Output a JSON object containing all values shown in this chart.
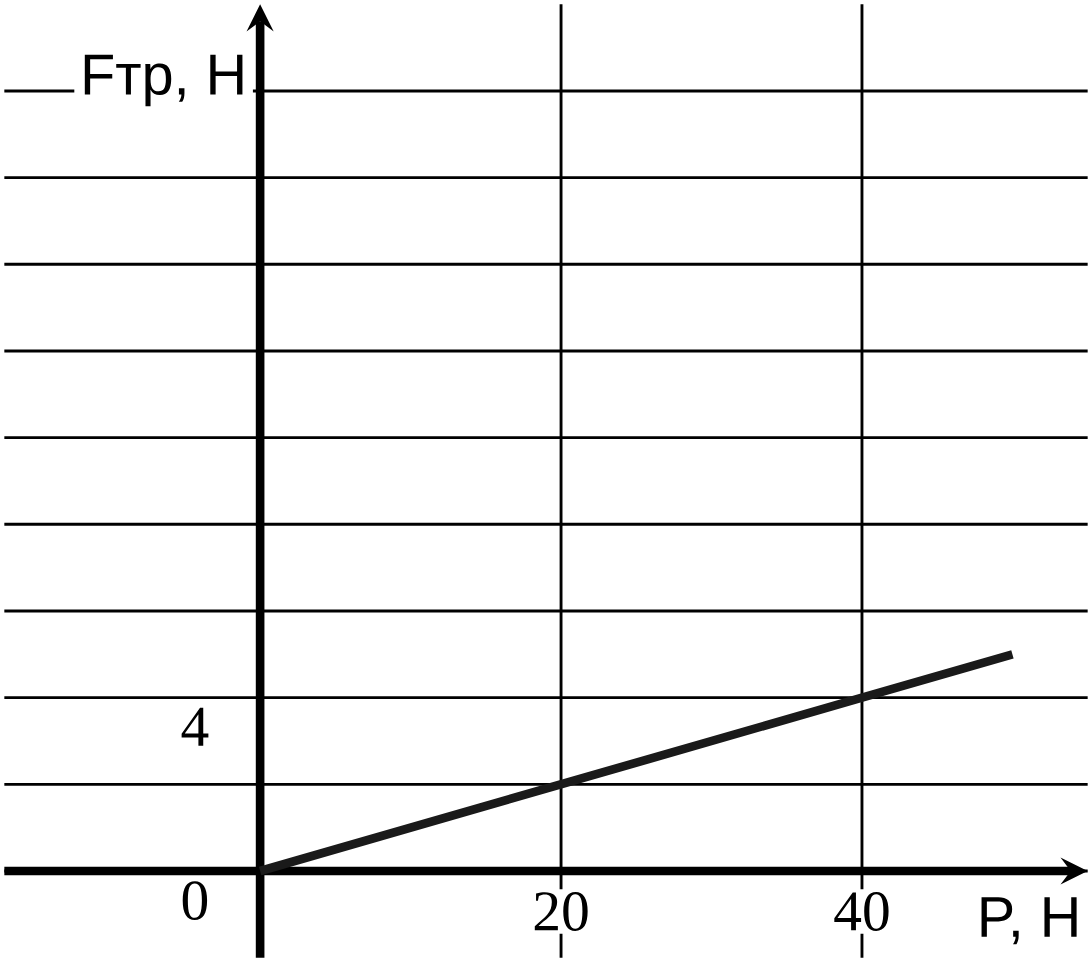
{
  "chart_data": {
    "type": "line",
    "xlabel": "P, Н",
    "ylabel": "Fтр, Н",
    "x": [
      0,
      40,
      50
    ],
    "series": [
      {
        "color": "#1a1a1a",
        "values": [
          0,
          4,
          5
        ]
      }
    ],
    "xlim": [
      -17,
      55
    ],
    "ylim": [
      -2,
      20
    ],
    "xticks": [
      20,
      40
    ],
    "yticks": [
      0,
      {
        "value": 2,
        "label": null
      },
      4,
      {
        "value": 6,
        "label": null
      },
      {
        "value": 8,
        "label": null
      },
      {
        "value": 10,
        "label": null
      },
      {
        "value": 12,
        "label": null
      },
      {
        "value": 14,
        "label": null
      },
      {
        "value": 16,
        "label": null
      },
      {
        "value": 18,
        "label": null
      }
    ],
    "grid": true,
    "marker": "none",
    "line_style": "solid"
  }
}
